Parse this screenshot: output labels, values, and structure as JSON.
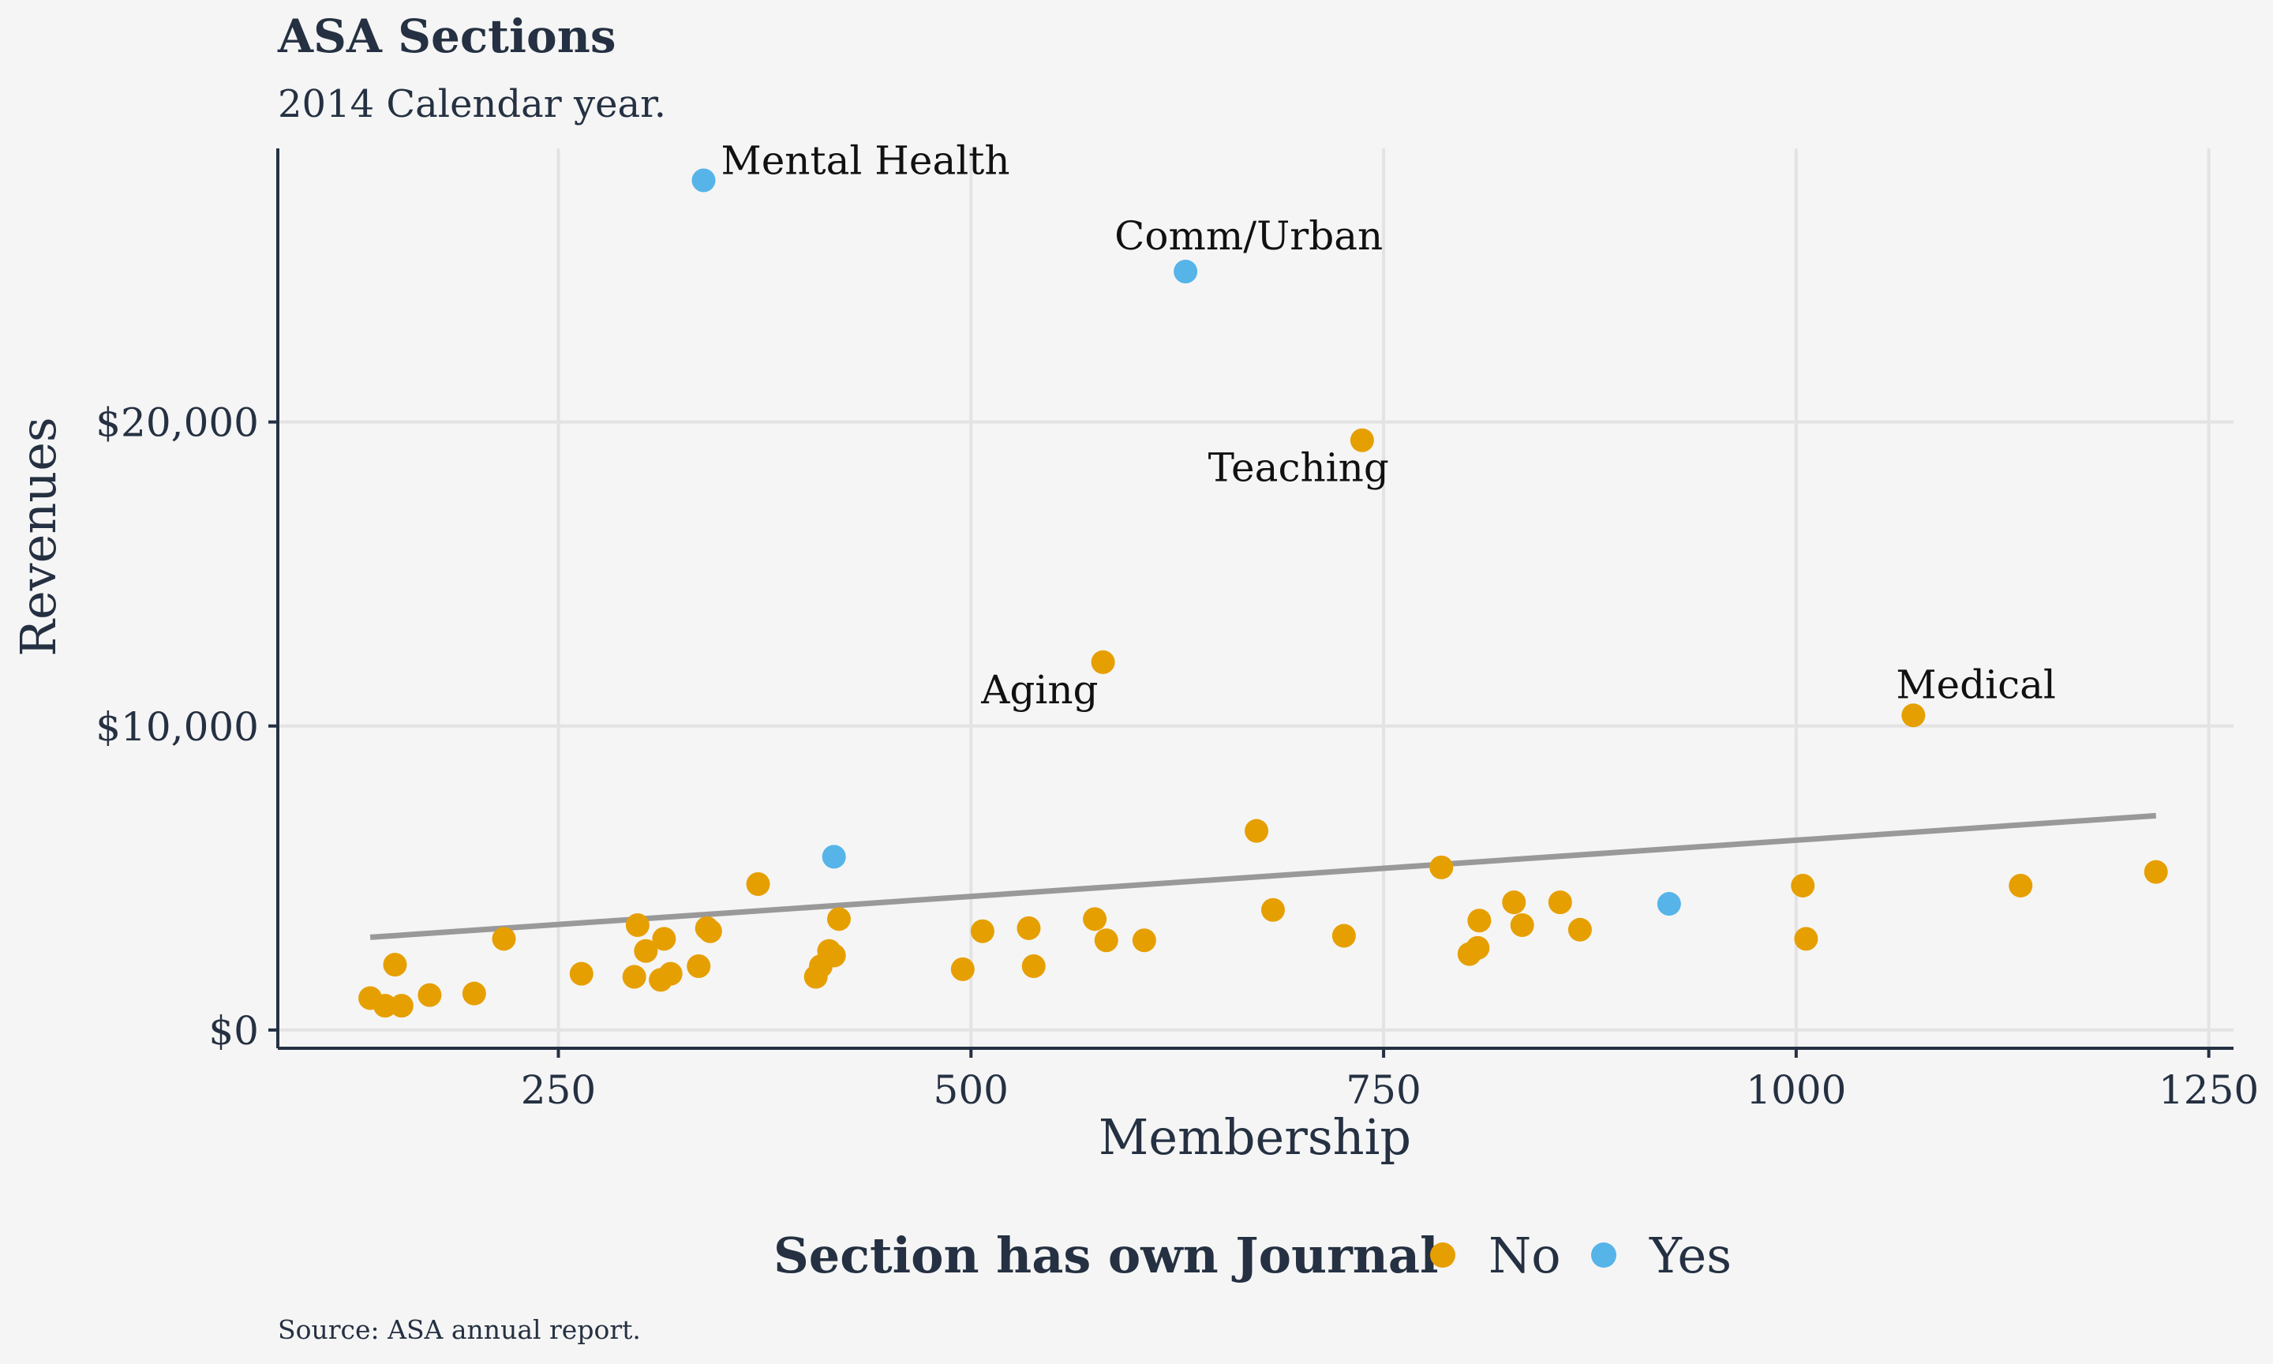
{
  "colors": {
    "no": "#e69f00",
    "yes": "#56b4e9",
    "trend": "#999999",
    "grid": "#e3e3e3",
    "axis": "#253142"
  },
  "chart_data": {
    "type": "scatter",
    "title": "ASA Sections",
    "subtitle": "2014 Calendar year.",
    "xlabel": "Membership",
    "ylabel": "Revenues",
    "caption": "Source: ASA annual report.",
    "xlim": [
      80,
      1265
    ],
    "ylim": [
      -600,
      29000
    ],
    "x_ticks": [
      250,
      500,
      750,
      1000,
      1250
    ],
    "x_tick_labels": [
      "250",
      "500",
      "750",
      "1000",
      "1250"
    ],
    "y_ticks": [
      0,
      10000,
      20000
    ],
    "y_tick_labels": [
      "$0",
      "$10,000",
      "$20,000"
    ],
    "grid": true,
    "legend": {
      "title": "Section has own Journal",
      "placement": "bottom",
      "entries": [
        "No",
        "Yes"
      ]
    },
    "trend_line": {
      "x": [
        136,
        1218
      ],
      "y": [
        3050,
        7050
      ]
    },
    "series": [
      {
        "name": "No",
        "color": "#e69f00",
        "points": [
          [
            136,
            1050
          ],
          [
            145,
            800
          ],
          [
            151,
            2150
          ],
          [
            155,
            800
          ],
          [
            172,
            1150
          ],
          [
            199,
            1200
          ],
          [
            217,
            3000
          ],
          [
            264,
            1850
          ],
          [
            296,
            1750
          ],
          [
            298,
            3450
          ],
          [
            303,
            2600
          ],
          [
            312,
            1650
          ],
          [
            314,
            3000
          ],
          [
            318,
            1850
          ],
          [
            335,
            2100
          ],
          [
            340,
            3350
          ],
          [
            342,
            3250
          ],
          [
            371,
            4800
          ],
          [
            406,
            1750
          ],
          [
            409,
            2100
          ],
          [
            414,
            2600
          ],
          [
            417,
            2450
          ],
          [
            420,
            3650
          ],
          [
            495,
            2000
          ],
          [
            507,
            3250
          ],
          [
            535,
            3350
          ],
          [
            538,
            2100
          ],
          [
            575,
            3650
          ],
          [
            580,
            12100
          ],
          [
            582,
            2950
          ],
          [
            605,
            2950
          ],
          [
            673,
            6550
          ],
          [
            683,
            3950
          ],
          [
            726,
            3100
          ],
          [
            737,
            19400
          ],
          [
            785,
            5350
          ],
          [
            802,
            2500
          ],
          [
            807,
            2700
          ],
          [
            808,
            3600
          ],
          [
            829,
            4200
          ],
          [
            834,
            3450
          ],
          [
            857,
            4200
          ],
          [
            869,
            3300
          ],
          [
            1004,
            4750
          ],
          [
            1006,
            3000
          ],
          [
            1071,
            10350
          ],
          [
            1136,
            4750
          ],
          [
            1218,
            5200
          ]
        ]
      },
      {
        "name": "Yes",
        "color": "#56b4e9",
        "points": [
          [
            338,
            27950
          ],
          [
            417,
            5700
          ],
          [
            630,
            24950
          ],
          [
            923,
            4150
          ]
        ]
      }
    ],
    "annotations": [
      {
        "text": "Mental Health",
        "x": 338,
        "y": 27950,
        "anchor": "start",
        "dx": 22,
        "dy": -8
      },
      {
        "text": "Comm/Urban",
        "x": 630,
        "y": 24950,
        "anchor": "start",
        "dx": -90,
        "dy": -28
      },
      {
        "text": "Teaching",
        "x": 737,
        "y": 19400,
        "anchor": "end",
        "dx": 34,
        "dy": 52
      },
      {
        "text": "Aging",
        "x": 580,
        "y": 12100,
        "anchor": "end",
        "dx": -6,
        "dy": 52
      },
      {
        "text": "Medical",
        "x": 1071,
        "y": 10350,
        "anchor": "start",
        "dx": -22,
        "dy": -22
      }
    ]
  }
}
